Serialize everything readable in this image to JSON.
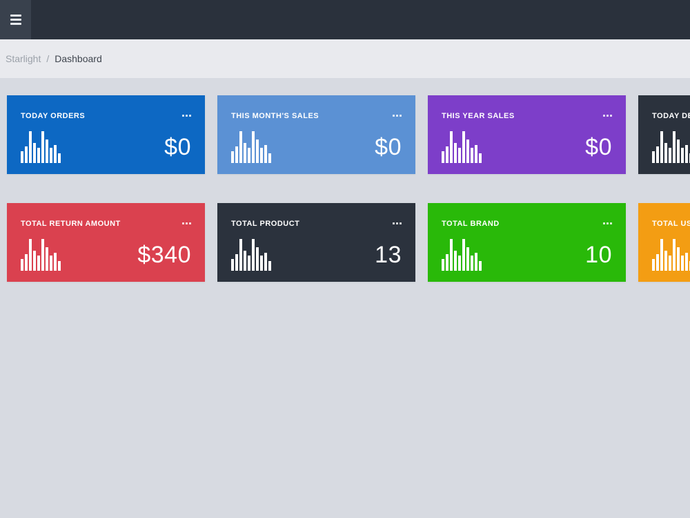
{
  "navbar": {
    "menu_icon": "hamburger-icon"
  },
  "breadcrumb": {
    "root": "Starlight",
    "separator": "/",
    "current": "Dashboard"
  },
  "cards": [
    {
      "title": "TODAY ORDERS",
      "value": "$0",
      "color": "#0d68c3"
    },
    {
      "title": "THIS MONTH'S SALES",
      "value": "$0",
      "color": "#5b91d4"
    },
    {
      "title": "THIS YEAR SALES",
      "value": "$0",
      "color": "#7d3ec9"
    },
    {
      "title": "TODAY DEL",
      "value": "",
      "color": "#2b323d",
      "clipped_by_viewport": true
    },
    {
      "title": "TOTAL RETURN AMOUNT",
      "value": "$340",
      "color": "#da414f"
    },
    {
      "title": "TOTAL PRODUCT",
      "value": "13",
      "color": "#2b323d"
    },
    {
      "title": "TOTAL BRAND",
      "value": "10",
      "color": "#29b909"
    },
    {
      "title": "TOTAL USE",
      "value": "",
      "color": "#f39d13",
      "clipped_by_viewport": true
    }
  ],
  "card_icon": {
    "name": "bar-chart-icon",
    "bar_heights_percent": [
      38,
      52,
      100,
      63,
      48,
      100,
      74,
      48,
      56,
      30
    ]
  },
  "colors": {
    "navbar_bg": "#2a313c",
    "menu_box_bg": "#39414d",
    "breadcrumb_bg": "#e9eaee",
    "page_bg": "#d7dae1",
    "breadcrumb_link": "#9ba1a9",
    "breadcrumb_current": "#3f454e"
  }
}
